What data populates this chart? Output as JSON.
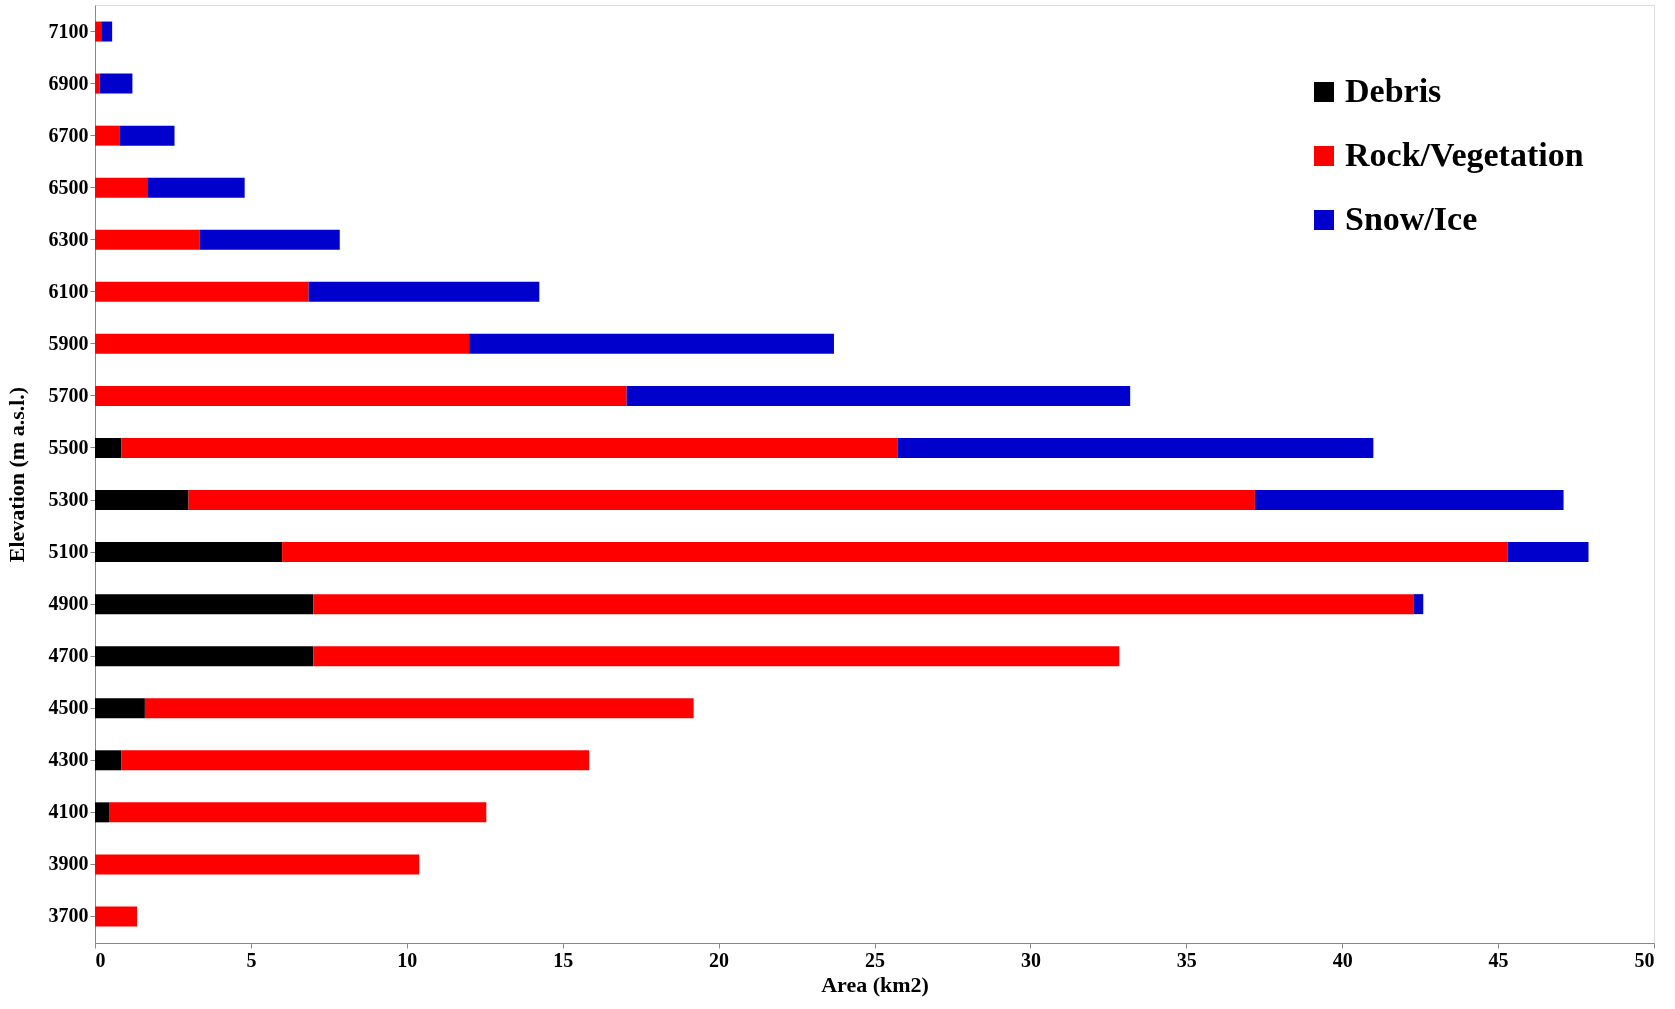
{
  "chart_data": {
    "type": "bar",
    "orientation": "horizontal",
    "stacked": true,
    "xlabel": "Area (km2)",
    "ylabel": "Elevation (m a.s.l.)",
    "categories": [
      "7100",
      "6900",
      "6700",
      "6500",
      "6300",
      "6100",
      "5900",
      "5700",
      "5500",
      "5300",
      "5100",
      "4900",
      "4700",
      "4500",
      "4300",
      "4100",
      "3900",
      "3700"
    ],
    "series": [
      {
        "name": "Debris",
        "color": "#000000",
        "values": [
          null,
          null,
          null,
          null,
          null,
          null,
          null,
          null,
          0.85,
          3.0,
          6.0,
          7.0,
          7.0,
          1.6,
          0.85,
          0.45,
          null,
          null
        ]
      },
      {
        "name": "Rock/Vegetation",
        "color": "#ff0000",
        "values": [
          0.2,
          0.15,
          0.8,
          1.7,
          3.35,
          6.85,
          12.0,
          17.05,
          24.9,
          34.2,
          39.3,
          35.3,
          25.85,
          17.6,
          15.0,
          12.1,
          10.4,
          1.35
        ]
      },
      {
        "name": "Snow/Ice",
        "color": "#0000cc",
        "values": [
          0.35,
          1.05,
          1.75,
          3.1,
          4.5,
          7.4,
          11.7,
          16.15,
          15.25,
          9.9,
          2.6,
          0.3,
          null,
          null,
          null,
          null,
          null,
          null
        ]
      }
    ],
    "xlim": [
      0,
      50
    ],
    "xticks": [
      0,
      5,
      10,
      15,
      20,
      25,
      30,
      35,
      40,
      45,
      50
    ],
    "grid": false,
    "legend": "top right"
  }
}
